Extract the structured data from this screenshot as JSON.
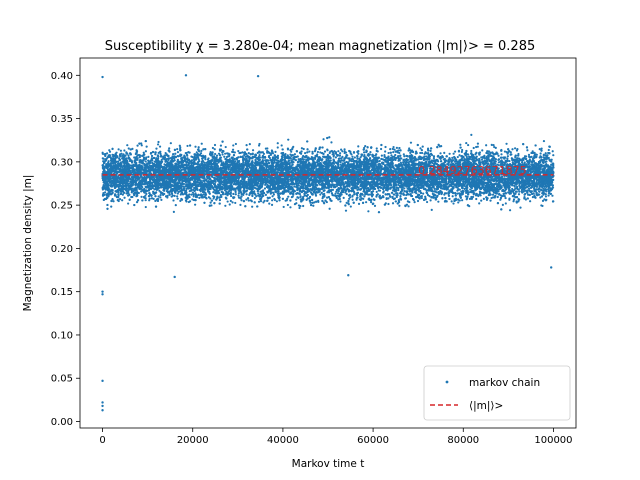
{
  "chart_data": {
    "type": "scatter",
    "title": "Susceptibility χ = 3.280e-04; mean magnetization ⟨|m|⟩> = 0.285",
    "xlabel": "Markov time t",
    "ylabel": "Magnetization density |m|",
    "xlim": [
      -5000,
      105000
    ],
    "ylim": [
      -0.0075,
      0.42
    ],
    "xticks": [
      0,
      20000,
      40000,
      60000,
      80000,
      100000
    ],
    "yticks": [
      0.0,
      0.05,
      0.1,
      0.15,
      0.2,
      0.25,
      0.3,
      0.35,
      0.4
    ],
    "xtick_labels": [
      "0",
      "20000",
      "40000",
      "60000",
      "80000",
      "100000"
    ],
    "ytick_labels": [
      "0.00",
      "0.05",
      "0.10",
      "0.15",
      "0.20",
      "0.25",
      "0.30",
      "0.35",
      "0.40"
    ],
    "grid": false,
    "legend_position": "lower-right",
    "series": [
      {
        "name": "markov chain",
        "kind": "scatter",
        "color": "#1f77b4",
        "x_range": [
          0,
          100000
        ],
        "center": 0.285,
        "spread_std": 0.027,
        "points": [
          {
            "x": 0,
            "y": 0.398
          },
          {
            "x": 0,
            "y": 0.15
          },
          {
            "x": 0,
            "y": 0.147
          },
          {
            "x": 0,
            "y": 0.047
          },
          {
            "x": 0,
            "y": 0.022
          },
          {
            "x": 0,
            "y": 0.018
          },
          {
            "x": 0,
            "y": 0.013
          },
          {
            "x": 18500,
            "y": 0.4
          },
          {
            "x": 34500,
            "y": 0.399
          },
          {
            "x": 16000,
            "y": 0.167
          },
          {
            "x": 54500,
            "y": 0.169
          },
          {
            "x": 99500,
            "y": 0.178
          }
        ]
      },
      {
        "name": "⟨|m|⟩>",
        "kind": "hline",
        "color": "#d62728",
        "style": "dashed",
        "y": 0.28492763671875
      }
    ],
    "annotations": [
      {
        "text": "0.28492763671875",
        "x": 70000,
        "y": 0.28492763671875,
        "color": "#d62728"
      }
    ]
  }
}
